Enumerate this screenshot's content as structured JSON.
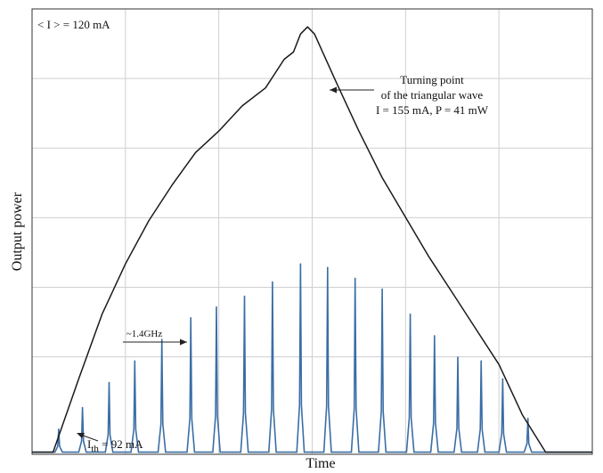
{
  "chart_data": {
    "type": "line",
    "title": "",
    "xlabel": "Time",
    "ylabel": "Output power",
    "xlim": [
      0,
      12
    ],
    "ylim": [
      0,
      6.2
    ],
    "grid": true,
    "colors": {
      "envelope": "#1a1a1a",
      "spectrum": "#3a6ea5",
      "grid": "#cfcfcf",
      "frame": "#333333"
    },
    "series": [
      {
        "style": "triangular-envelope",
        "x": [
          0,
          0.45,
          1.0,
          1.5,
          2.0,
          2.5,
          3.0,
          3.5,
          4.0,
          4.5,
          5.0,
          5.4,
          5.6,
          5.75,
          5.9,
          6.05,
          6.5,
          7.0,
          7.5,
          8.0,
          8.5,
          9.0,
          9.5,
          10.0,
          10.5,
          11.0,
          11.5,
          12.0
        ],
        "values": [
          0.03,
          0.03,
          1.05,
          1.95,
          2.65,
          3.25,
          3.75,
          4.2,
          4.5,
          4.85,
          5.1,
          5.5,
          5.6,
          5.85,
          5.95,
          5.85,
          5.2,
          4.5,
          3.85,
          3.3,
          2.75,
          2.25,
          1.75,
          1.25,
          0.55,
          0.03,
          0.03,
          0.03
        ]
      },
      {
        "style": "pulse-train",
        "x": [
          0.57,
          1.08,
          1.65,
          2.2,
          2.78,
          3.4,
          3.95,
          4.55,
          5.15,
          5.75,
          6.33,
          6.92,
          7.5,
          8.1,
          8.62,
          9.12,
          9.62,
          10.08,
          10.62
        ],
        "values": [
          0.35,
          0.65,
          1.0,
          1.3,
          1.6,
          1.9,
          2.05,
          2.2,
          2.4,
          2.65,
          2.6,
          2.45,
          2.3,
          1.95,
          1.65,
          1.35,
          1.3,
          1.05,
          0.5
        ],
        "baseline": 0.03
      }
    ],
    "annotations": {
      "mean_current": "< I > = 120 mA",
      "turning_point": [
        "Turning point",
        "of the triangular wave",
        "I = 155 mA, P = 41 mW"
      ],
      "spacing": "~1.4GHz",
      "threshold_main": "I",
      "threshold_sub": "th",
      "threshold_rest": " = 92 mA"
    }
  }
}
